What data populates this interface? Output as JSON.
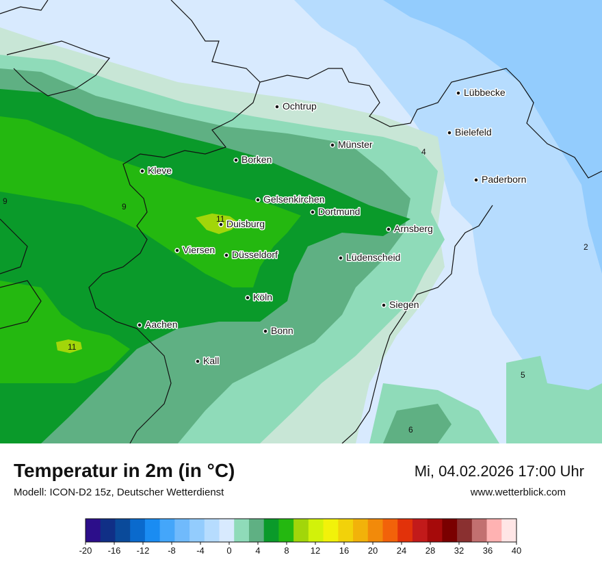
{
  "header": {
    "title": "Temperatur in 2m (in °C)",
    "subtitle": "Modell: ICON-D2 15z, Deutscher Wetterdienst",
    "datetime": "Mi, 04.02.2026 17:00 Uhr",
    "website": "www.wetterblick.com"
  },
  "cities": [
    {
      "name": "Ochtrup"
    },
    {
      "name": "Lübbecke"
    },
    {
      "name": "Bielefeld"
    },
    {
      "name": "Münster"
    },
    {
      "name": "Borken"
    },
    {
      "name": "Kleve"
    },
    {
      "name": "Paderborn"
    },
    {
      "name": "Gelsenkirchen"
    },
    {
      "name": "Dortmund"
    },
    {
      "name": "Duisburg"
    },
    {
      "name": "Arnsberg"
    },
    {
      "name": "Viersen"
    },
    {
      "name": "Düsseldorf"
    },
    {
      "name": "Lüdenscheid"
    },
    {
      "name": "Köln"
    },
    {
      "name": "Siegen"
    },
    {
      "name": "Aachen"
    },
    {
      "name": "Bonn"
    },
    {
      "name": "Kall"
    }
  ],
  "isolines": [
    "4",
    "9",
    "9",
    "11",
    "2",
    "11",
    "5",
    "6"
  ],
  "legend": {
    "ticks": [
      "-20",
      "-16",
      "-12",
      "-8",
      "-4",
      "0",
      "4",
      "8",
      "12",
      "16",
      "20",
      "24",
      "28",
      "32",
      "36",
      "40"
    ],
    "colors": [
      "#2c0e8a",
      "#102f86",
      "#0a4a9a",
      "#0a6acd",
      "#1a8cf2",
      "#44a6fa",
      "#70bafc",
      "#93ccfd",
      "#b6dcfe",
      "#d8eafe",
      "#8fdbb9",
      "#5fb083",
      "#0a9a2a",
      "#24b810",
      "#a2d60a",
      "#d2f20a",
      "#f2f20a",
      "#f2d20a",
      "#f2b20a",
      "#f28a0a",
      "#f2620a",
      "#e2320a",
      "#c21a1a",
      "#a60a0a",
      "#7a0000",
      "#8a3030",
      "#c27070",
      "#ffb2b2",
      "#ffe6e6"
    ]
  },
  "colors": {
    "t_minus2": "#d8eafe",
    "t_minus4": "#b6dcfe",
    "t_minus6": "#93ccfd",
    "t_2": "#c8e6d6",
    "t_4": "#8fdbb9",
    "t_6": "#5fb083",
    "t_8": "#0a9a2a",
    "t_10": "#24b810",
    "t_12": "#a2d60a"
  }
}
